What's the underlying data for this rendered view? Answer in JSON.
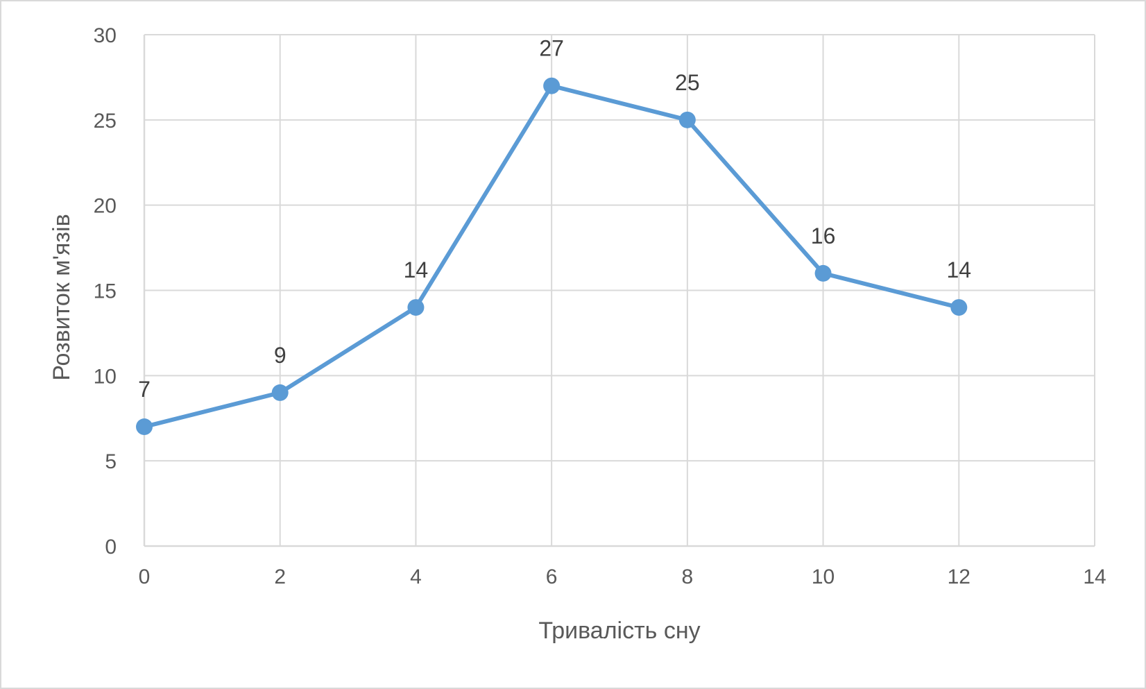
{
  "chart_data": {
    "type": "scatter",
    "title": "",
    "xlabel": "Тривалість сну",
    "ylabel": "Розвиток м'язів",
    "xlim": [
      0,
      14
    ],
    "ylim": [
      0,
      30
    ],
    "x_ticks": [
      "0",
      "2",
      "4",
      "6",
      "8",
      "10",
      "12",
      "14"
    ],
    "y_ticks": [
      "0",
      "5",
      "10",
      "15",
      "20",
      "25",
      "30"
    ],
    "grid": true,
    "legend": "none",
    "series": [
      {
        "color": "#5b9bd5",
        "x": [
          0,
          2,
          4,
          6,
          8,
          10,
          12
        ],
        "y": [
          7,
          9,
          14,
          27,
          25,
          16,
          14
        ],
        "data_labels": [
          "7",
          "9",
          "14",
          "27",
          "25",
          "16",
          "14"
        ],
        "line": "straight",
        "markers": true
      }
    ]
  }
}
